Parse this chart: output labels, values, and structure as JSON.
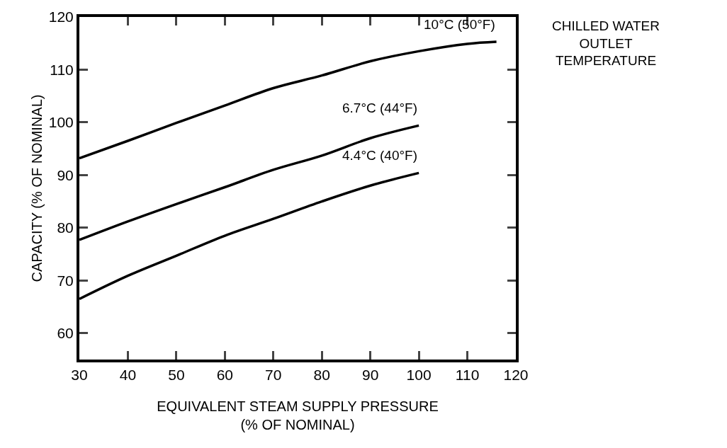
{
  "chart_data": {
    "type": "line",
    "xlabel": "EQUIVALENT STEAM SUPPLY PRESSURE\n(% OF NOMINAL)",
    "ylabel": "CAPACITY (% OF NOMINAL)",
    "legend_title": "CHILLED WATER\nOUTLET\nTEMPERATURE",
    "x": [
      30,
      40,
      50,
      60,
      70,
      80,
      90,
      100,
      110,
      116
    ],
    "series": [
      {
        "name": "10°C (50°F)",
        "color": "#000000",
        "values": [
          93.2,
          96.5,
          99.9,
          103.2,
          106.5,
          108.9,
          111.6,
          113.5,
          114.9,
          115.3
        ]
      },
      {
        "name": "6.7°C (44°F)",
        "color": "#000000",
        "x": [
          30,
          40,
          50,
          60,
          70,
          80,
          90,
          100
        ],
        "values": [
          77.7,
          81.2,
          84.5,
          87.7,
          91.0,
          93.7,
          97.0,
          99.4
        ]
      },
      {
        "name": "4.4°C (40°F)",
        "color": "#000000",
        "x": [
          30,
          40,
          50,
          60,
          70,
          80,
          90,
          100
        ],
        "values": [
          66.5,
          70.9,
          74.7,
          78.5,
          81.7,
          85.0,
          88.0,
          90.4
        ]
      }
    ],
    "xlim": [
      30,
      120
    ],
    "xticks": [
      30,
      40,
      50,
      60,
      70,
      80,
      90,
      100,
      110,
      120
    ],
    "ylim": [
      55,
      120
    ],
    "yticks": [
      60,
      70,
      80,
      90,
      100,
      110,
      120
    ],
    "grid": false,
    "legend": false,
    "marker": "none",
    "line_style": "solid"
  }
}
